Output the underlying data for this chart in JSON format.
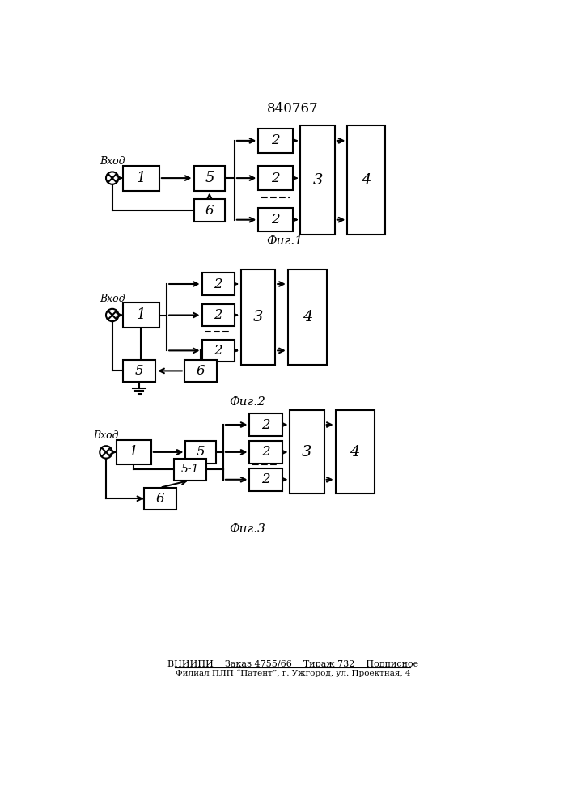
{
  "title": "840767",
  "bg_color": "#ffffff",
  "line_color": "#000000",
  "footer_line1": "ВНИИПИ    Заказ 4755/66    Тираж 732    Подписное",
  "footer_line2": "Филиал ПЛП “Патент”, г. Ужгород, ул. Проектная, 4",
  "fig1_label": "Фиг.1",
  "fig2_label": "Фиг.2",
  "fig3_label": "Фиг.3"
}
